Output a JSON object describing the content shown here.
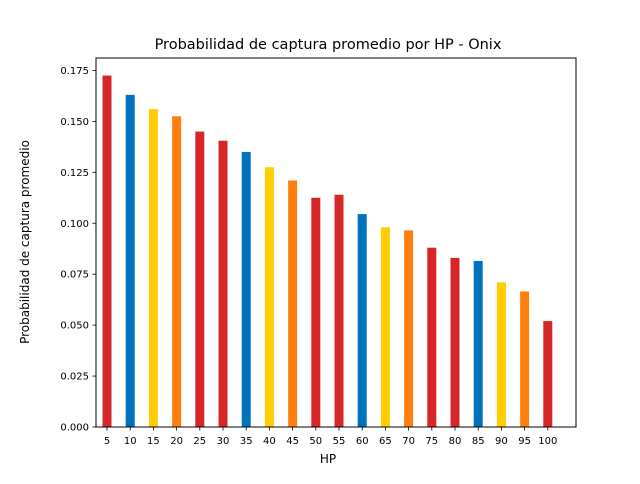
{
  "chart_data": {
    "type": "bar",
    "title": "Probabilidad de captura promedio por HP - Onix",
    "xlabel": "HP",
    "ylabel": "Probabilidad de captura promedio",
    "categories": [
      "5",
      "10",
      "15",
      "20",
      "25",
      "30",
      "35",
      "40",
      "45",
      "50",
      "55",
      "60",
      "65",
      "70",
      "75",
      "80",
      "85",
      "90",
      "95",
      "100"
    ],
    "values": [
      0.1725,
      0.163,
      0.156,
      0.1525,
      0.145,
      0.1405,
      0.135,
      0.1275,
      0.121,
      0.1125,
      0.114,
      0.1045,
      0.098,
      0.0965,
      0.088,
      0.083,
      0.0815,
      0.071,
      0.0665,
      0.052
    ],
    "bar_colors": [
      "#d62728",
      "#0072bd",
      "#ffcc00",
      "#ff7f0e",
      "#d62728",
      "#d62728",
      "#0072bd",
      "#ffcc00",
      "#ff7f0e",
      "#d62728",
      "#d62728",
      "#0072bd",
      "#ffcc00",
      "#ff7f0e",
      "#d62728",
      "#d62728",
      "#0072bd",
      "#ffcc00",
      "#ff7f0e",
      "#d62728"
    ],
    "yticks": [
      "0.000",
      "0.025",
      "0.050",
      "0.075",
      "0.100",
      "0.125",
      "0.150",
      "0.175"
    ],
    "ylim": [
      0,
      0.1811
    ],
    "grid": false,
    "legend": "none"
  }
}
